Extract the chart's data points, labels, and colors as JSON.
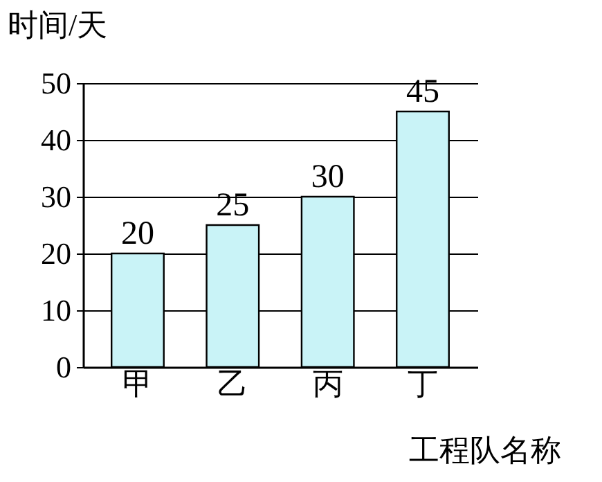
{
  "chart_data": {
    "type": "bar",
    "xlabel": "工程队名称",
    "ylabel": "时间/天",
    "categories": [
      "甲",
      "乙",
      "丙",
      "丁"
    ],
    "values": [
      20,
      25,
      30,
      45
    ],
    "color": "#c9f3f7",
    "ylim": [
      0,
      50
    ],
    "yticks": [
      0,
      10,
      20,
      30,
      40,
      50
    ],
    "grid": "y",
    "data_labels": true
  }
}
